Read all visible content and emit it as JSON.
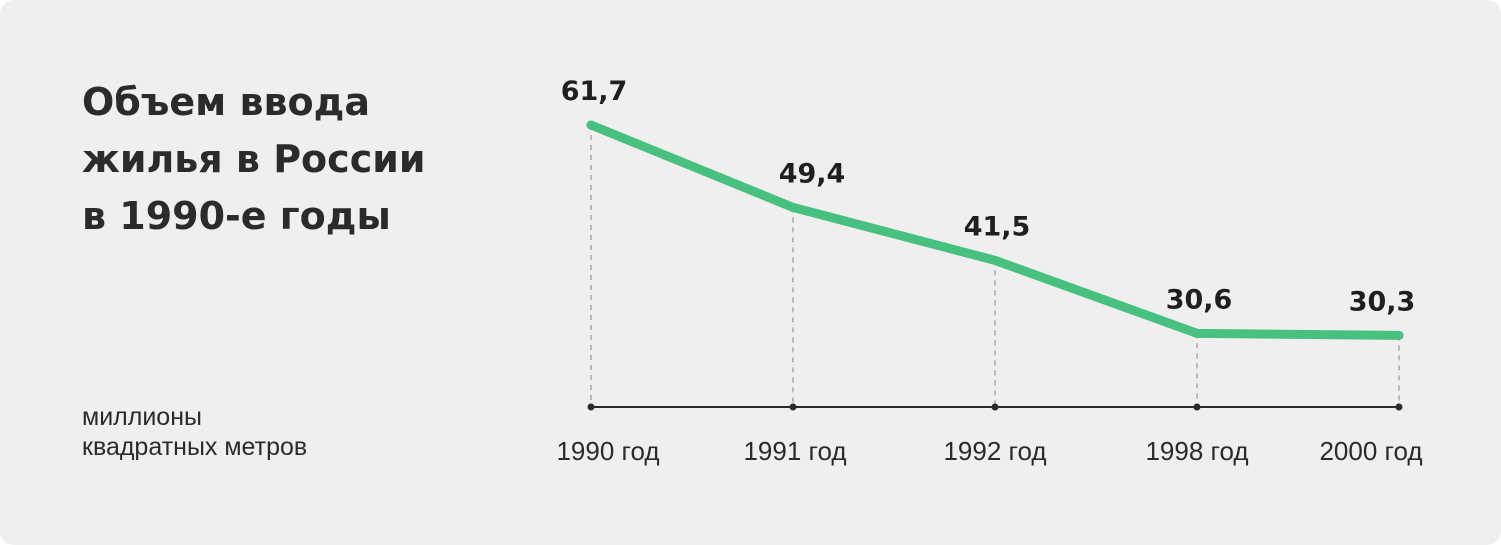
{
  "title_lines": [
    "Объем ввода",
    "жилья в России",
    "в 1990-е годы"
  ],
  "unit_lines": [
    "миллионы",
    "квадратных метров"
  ],
  "colors": {
    "line": "#48c07f",
    "axis": "#2b2b2b",
    "guide": "#b9b9b9",
    "background": "#efefef"
  },
  "chart_data": {
    "type": "line",
    "title": "Объем ввода жилья в России в 1990-е годы",
    "ylabel": "миллионы квадратных метров",
    "categories": [
      "1990 год",
      "1991 год",
      "1992 год",
      "1998 год",
      "2000 год"
    ],
    "series": [
      {
        "values": [
          61.7,
          49.4,
          41.5,
          30.6,
          30.3
        ]
      }
    ],
    "data_labels": [
      "61,7",
      "49,4",
      "41,5",
      "30,6",
      "30,3"
    ],
    "grid": false,
    "legend": "none"
  }
}
